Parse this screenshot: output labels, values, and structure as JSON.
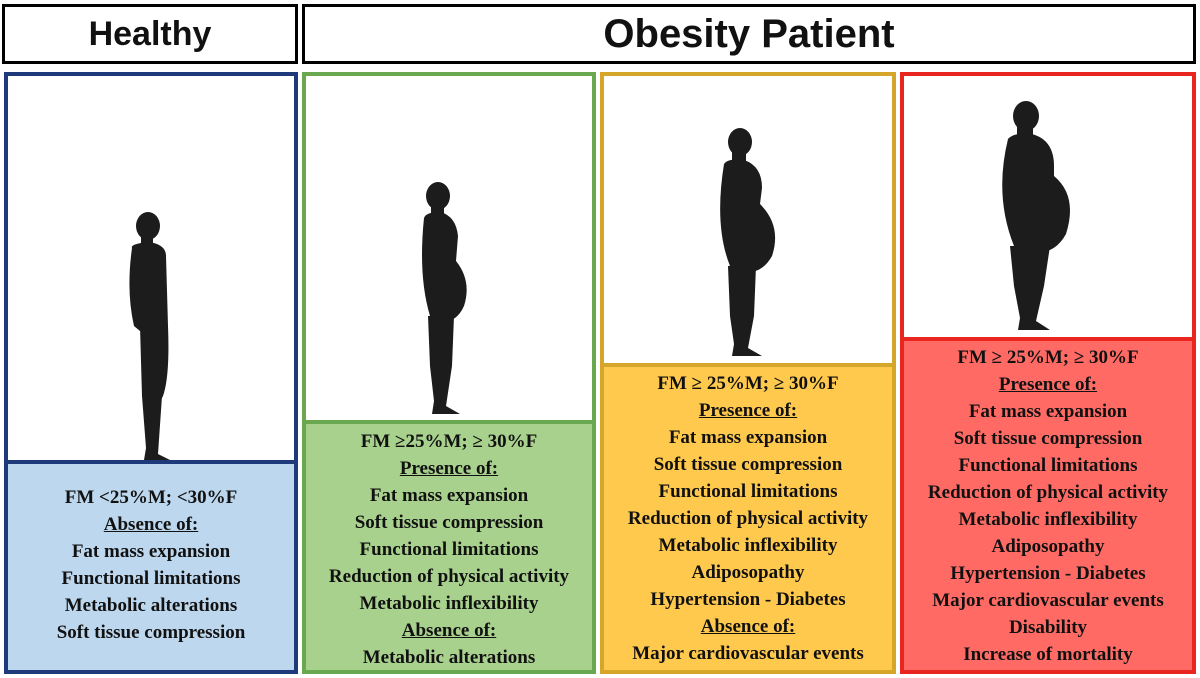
{
  "headers": {
    "healthy": "Healthy",
    "obesity": "Obesity Patient"
  },
  "columns": [
    {
      "criteria": "FM <25%M; <30%F",
      "sections": [
        {
          "label": "Absence of:",
          "items": [
            "Fat mass expansion",
            "Functional limitations",
            "Metabolic alterations",
            "Soft tissue compression"
          ]
        }
      ],
      "color": "#bdd7ee",
      "border": "#1f3a7a"
    },
    {
      "criteria": "FM ≥25%M; ≥ 30%F",
      "sections": [
        {
          "label": "Presence of:",
          "items": [
            "Fat mass expansion",
            "Soft tissue compression",
            "Functional limitations",
            "Reduction of physical activity",
            "Metabolic inflexibility"
          ]
        },
        {
          "label": "Absence of:",
          "items": [
            "Metabolic alterations"
          ]
        }
      ],
      "color": "#a9d18e",
      "border": "#6aa84f"
    },
    {
      "criteria": "FM ≥ 25%M; ≥ 30%F",
      "sections": [
        {
          "label": "Presence of:",
          "items": [
            "Fat mass expansion",
            "Soft tissue compression",
            "Functional limitations",
            "Reduction of physical activity",
            "Metabolic inflexibility",
            "Adiposopathy",
            "Hypertension - Diabetes"
          ]
        },
        {
          "label": "Absence of:",
          "items": [
            "Major cardiovascular events"
          ]
        }
      ],
      "color": "#ffc94d",
      "border": "#d6a62a"
    },
    {
      "criteria": "FM ≥ 25%M; ≥ 30%F",
      "sections": [
        {
          "label": "Presence of:",
          "items": [
            "Fat mass expansion",
            "Soft tissue compression",
            "Functional limitations",
            "Reduction of physical activity",
            "Metabolic inflexibility",
            "Adiposopathy",
            "Hypertension - Diabetes",
            "Major cardiovascular events",
            "Disability",
            "Increase of mortality"
          ]
        }
      ],
      "color": "#ff6b64",
      "border": "#e8261f"
    }
  ],
  "icons": [
    "silhouette-slim-icon",
    "silhouette-overweight-icon",
    "silhouette-obese-icon",
    "silhouette-severely-obese-icon"
  ]
}
